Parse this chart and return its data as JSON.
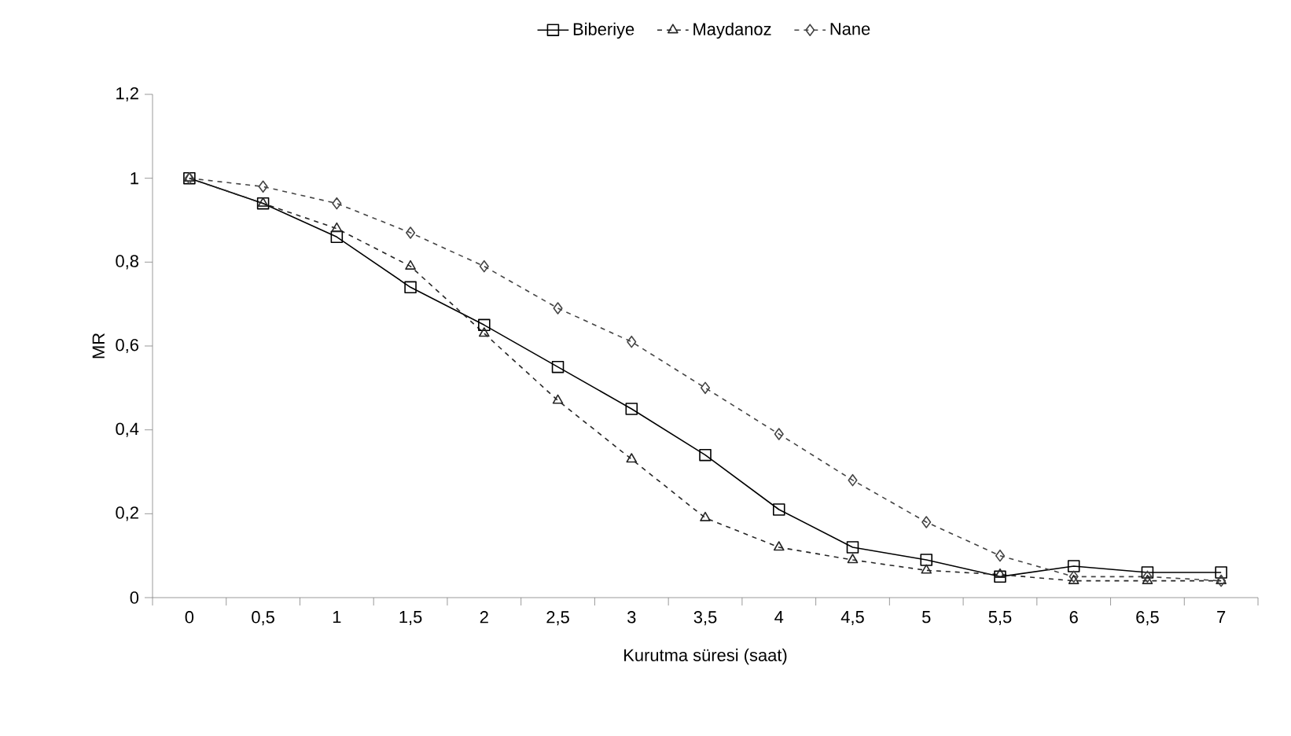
{
  "chart_data": {
    "type": "line",
    "xlabel": "Kurutma süresi (saat)",
    "ylabel": "MR",
    "categories": [
      "0",
      "0,5",
      "1",
      "1,5",
      "2",
      "2,5",
      "3",
      "3,5",
      "4",
      "4,5",
      "5",
      "5,5",
      "6",
      "6,5",
      "7"
    ],
    "ylim": [
      0,
      1.2
    ],
    "yticks": [
      0,
      {
        "value": 0.2,
        "label": "0,2"
      },
      {
        "value": 0.4,
        "label": "0,4"
      },
      {
        "value": 0.6,
        "label": "0,6"
      },
      {
        "value": 0.8,
        "label": "0,8"
      },
      1,
      {
        "value": 1.2,
        "label": "1,2"
      }
    ],
    "grid": false,
    "legend": "top",
    "series": [
      {
        "name": "Biberiye",
        "color": "#000000",
        "marker": "square",
        "line_style": "solid",
        "values": [
          1.0,
          0.94,
          0.86,
          0.74,
          0.65,
          0.55,
          0.45,
          0.34,
          0.21,
          0.12,
          0.09,
          0.05,
          0.075,
          0.06,
          0.06
        ]
      },
      {
        "name": "Maydanoz",
        "color": "#262626",
        "marker": "triangle",
        "line_style": "dashed",
        "values": [
          1.0,
          0.94,
          0.88,
          0.79,
          0.63,
          0.47,
          0.33,
          0.19,
          0.12,
          0.09,
          0.065,
          0.055,
          0.04,
          0.04,
          0.04
        ]
      },
      {
        "name": "Nane",
        "color": "#444444",
        "marker": "diamond",
        "line_style": "dashed",
        "values": [
          1.0,
          0.98,
          0.94,
          0.87,
          0.79,
          0.69,
          0.61,
          0.5,
          0.39,
          0.28,
          0.18,
          0.1,
          0.05,
          0.05,
          0.04
        ]
      }
    ]
  }
}
